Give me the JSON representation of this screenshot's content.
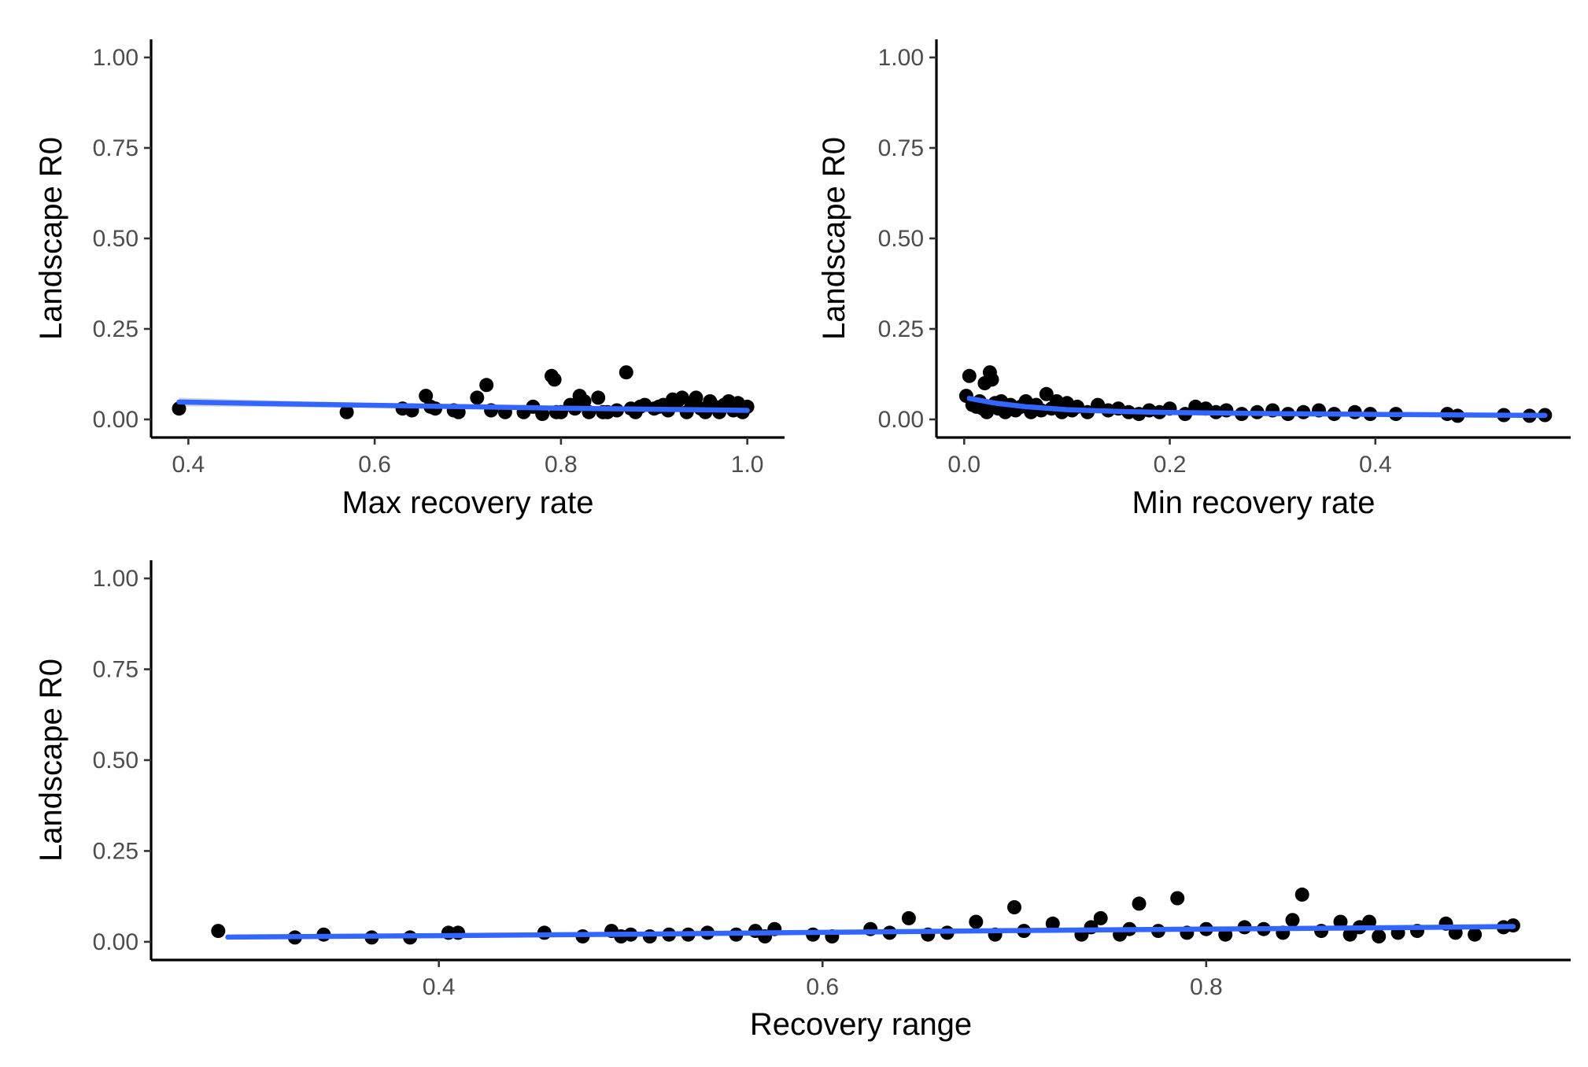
{
  "chart_data": [
    {
      "type": "scatter",
      "panel": "max-recovery",
      "xlabel": "Max recovery rate",
      "ylabel": "Landscape R0",
      "xlim": [
        0.36,
        1.04
      ],
      "ylim": [
        -0.05,
        1.05
      ],
      "xticks": [
        0.4,
        0.6,
        0.8,
        1.0
      ],
      "xtick_labels": [
        "0.4",
        "0.6",
        "0.8",
        "1.0"
      ],
      "yticks": [
        0.0,
        0.25,
        0.5,
        0.75,
        1.0
      ],
      "ytick_labels": [
        "0.00",
        "0.25",
        "0.50",
        "0.75",
        "1.00"
      ],
      "grid": false,
      "points": [
        [
          0.39,
          0.03
        ],
        [
          0.57,
          0.02
        ],
        [
          0.63,
          0.03
        ],
        [
          0.64,
          0.025
        ],
        [
          0.655,
          0.065
        ],
        [
          0.66,
          0.035
        ],
        [
          0.665,
          0.03
        ],
        [
          0.685,
          0.025
        ],
        [
          0.69,
          0.02
        ],
        [
          0.71,
          0.06
        ],
        [
          0.72,
          0.095
        ],
        [
          0.725,
          0.025
        ],
        [
          0.74,
          0.02
        ],
        [
          0.76,
          0.02
        ],
        [
          0.77,
          0.035
        ],
        [
          0.78,
          0.015
        ],
        [
          0.79,
          0.12
        ],
        [
          0.793,
          0.11
        ],
        [
          0.795,
          0.02
        ],
        [
          0.8,
          0.02
        ],
        [
          0.81,
          0.04
        ],
        [
          0.815,
          0.03
        ],
        [
          0.82,
          0.065
        ],
        [
          0.825,
          0.05
        ],
        [
          0.83,
          0.02
        ],
        [
          0.84,
          0.06
        ],
        [
          0.845,
          0.02
        ],
        [
          0.85,
          0.02
        ],
        [
          0.86,
          0.025
        ],
        [
          0.87,
          0.13
        ],
        [
          0.875,
          0.03
        ],
        [
          0.88,
          0.02
        ],
        [
          0.885,
          0.035
        ],
        [
          0.89,
          0.04
        ],
        [
          0.9,
          0.03
        ],
        [
          0.905,
          0.035
        ],
        [
          0.91,
          0.04
        ],
        [
          0.915,
          0.025
        ],
        [
          0.92,
          0.055
        ],
        [
          0.925,
          0.05
        ],
        [
          0.93,
          0.06
        ],
        [
          0.935,
          0.02
        ],
        [
          0.94,
          0.045
        ],
        [
          0.945,
          0.06
        ],
        [
          0.95,
          0.03
        ],
        [
          0.955,
          0.02
        ],
        [
          0.96,
          0.05
        ],
        [
          0.965,
          0.035
        ],
        [
          0.97,
          0.02
        ],
        [
          0.975,
          0.04
        ],
        [
          0.98,
          0.05
        ],
        [
          0.985,
          0.025
        ],
        [
          0.99,
          0.045
        ],
        [
          0.995,
          0.02
        ],
        [
          1.0,
          0.035
        ]
      ],
      "fit": [
        [
          0.39,
          0.048
        ],
        [
          0.5,
          0.043
        ],
        [
          0.6,
          0.039
        ],
        [
          0.7,
          0.035
        ],
        [
          0.8,
          0.031
        ],
        [
          0.9,
          0.028
        ],
        [
          1.0,
          0.025
        ]
      ],
      "band_halfwidth": [
        [
          0.39,
          0.012
        ],
        [
          0.6,
          0.006
        ],
        [
          0.8,
          0.004
        ],
        [
          1.0,
          0.005
        ]
      ]
    },
    {
      "type": "scatter",
      "panel": "min-recovery",
      "xlabel": "Min recovery rate",
      "ylabel": "Landscape R0",
      "xlim": [
        -0.027,
        0.59
      ],
      "ylim": [
        -0.05,
        1.05
      ],
      "xticks": [
        0.0,
        0.2,
        0.4
      ],
      "xtick_labels": [
        "0.0",
        "0.2",
        "0.4"
      ],
      "yticks": [
        0.0,
        0.25,
        0.5,
        0.75,
        1.0
      ],
      "ytick_labels": [
        "0.00",
        "0.25",
        "0.50",
        "0.75",
        "1.00"
      ],
      "grid": false,
      "points": [
        [
          0.002,
          0.065
        ],
        [
          0.005,
          0.12
        ],
        [
          0.008,
          0.04
        ],
        [
          0.012,
          0.035
        ],
        [
          0.015,
          0.05
        ],
        [
          0.018,
          0.03
        ],
        [
          0.02,
          0.1
        ],
        [
          0.022,
          0.02
        ],
        [
          0.025,
          0.13
        ],
        [
          0.027,
          0.11
        ],
        [
          0.03,
          0.045
        ],
        [
          0.033,
          0.03
        ],
        [
          0.036,
          0.05
        ],
        [
          0.04,
          0.02
        ],
        [
          0.045,
          0.04
        ],
        [
          0.05,
          0.025
        ],
        [
          0.055,
          0.035
        ],
        [
          0.06,
          0.05
        ],
        [
          0.065,
          0.02
        ],
        [
          0.07,
          0.04
        ],
        [
          0.075,
          0.025
        ],
        [
          0.08,
          0.07
        ],
        [
          0.085,
          0.03
        ],
        [
          0.09,
          0.05
        ],
        [
          0.095,
          0.02
        ],
        [
          0.1,
          0.045
        ],
        [
          0.105,
          0.025
        ],
        [
          0.11,
          0.035
        ],
        [
          0.12,
          0.02
        ],
        [
          0.13,
          0.04
        ],
        [
          0.14,
          0.025
        ],
        [
          0.15,
          0.03
        ],
        [
          0.16,
          0.02
        ],
        [
          0.17,
          0.015
        ],
        [
          0.18,
          0.025
        ],
        [
          0.19,
          0.02
        ],
        [
          0.2,
          0.03
        ],
        [
          0.215,
          0.015
        ],
        [
          0.225,
          0.035
        ],
        [
          0.235,
          0.03
        ],
        [
          0.245,
          0.02
        ],
        [
          0.255,
          0.025
        ],
        [
          0.27,
          0.015
        ],
        [
          0.285,
          0.02
        ],
        [
          0.3,
          0.025
        ],
        [
          0.315,
          0.015
        ],
        [
          0.33,
          0.02
        ],
        [
          0.345,
          0.025
        ],
        [
          0.36,
          0.015
        ],
        [
          0.38,
          0.02
        ],
        [
          0.395,
          0.015
        ],
        [
          0.42,
          0.015
        ],
        [
          0.47,
          0.015
        ],
        [
          0.48,
          0.01
        ],
        [
          0.525,
          0.012
        ],
        [
          0.55,
          0.01
        ],
        [
          0.565,
          0.012
        ]
      ],
      "fit": [
        [
          0.005,
          0.058
        ],
        [
          0.03,
          0.045
        ],
        [
          0.06,
          0.035
        ],
        [
          0.1,
          0.027
        ],
        [
          0.15,
          0.022
        ],
        [
          0.2,
          0.019
        ],
        [
          0.3,
          0.016
        ],
        [
          0.4,
          0.014
        ],
        [
          0.5,
          0.012
        ],
        [
          0.565,
          0.011
        ]
      ],
      "band_halfwidth": []
    },
    {
      "type": "scatter",
      "panel": "recovery-range",
      "xlabel": "Recovery range",
      "ylabel": "Landscape R0",
      "xlim": [
        0.25,
        0.99
      ],
      "ylim": [
        -0.05,
        1.05
      ],
      "xticks": [
        0.4,
        0.6,
        0.8
      ],
      "xtick_labels": [
        "0.4",
        "0.6",
        "0.8"
      ],
      "yticks": [
        0.0,
        0.25,
        0.5,
        0.75,
        1.0
      ],
      "ytick_labels": [
        "0.00",
        "0.25",
        "0.50",
        "0.75",
        "1.00"
      ],
      "grid": false,
      "points": [
        [
          0.285,
          0.03
        ],
        [
          0.325,
          0.012
        ],
        [
          0.34,
          0.02
        ],
        [
          0.365,
          0.012
        ],
        [
          0.385,
          0.012
        ],
        [
          0.405,
          0.025
        ],
        [
          0.41,
          0.025
        ],
        [
          0.455,
          0.025
        ],
        [
          0.475,
          0.015
        ],
        [
          0.49,
          0.03
        ],
        [
          0.495,
          0.015
        ],
        [
          0.5,
          0.02
        ],
        [
          0.51,
          0.015
        ],
        [
          0.52,
          0.02
        ],
        [
          0.53,
          0.02
        ],
        [
          0.54,
          0.025
        ],
        [
          0.555,
          0.02
        ],
        [
          0.565,
          0.03
        ],
        [
          0.57,
          0.015
        ],
        [
          0.575,
          0.035
        ],
        [
          0.595,
          0.02
        ],
        [
          0.605,
          0.015
        ],
        [
          0.625,
          0.035
        ],
        [
          0.635,
          0.025
        ],
        [
          0.645,
          0.065
        ],
        [
          0.655,
          0.02
        ],
        [
          0.665,
          0.025
        ],
        [
          0.68,
          0.055
        ],
        [
          0.69,
          0.02
        ],
        [
          0.7,
          0.095
        ],
        [
          0.705,
          0.03
        ],
        [
          0.72,
          0.05
        ],
        [
          0.735,
          0.02
        ],
        [
          0.74,
          0.04
        ],
        [
          0.745,
          0.065
        ],
        [
          0.755,
          0.02
        ],
        [
          0.76,
          0.035
        ],
        [
          0.765,
          0.105
        ],
        [
          0.775,
          0.03
        ],
        [
          0.785,
          0.12
        ],
        [
          0.79,
          0.025
        ],
        [
          0.8,
          0.035
        ],
        [
          0.81,
          0.02
        ],
        [
          0.82,
          0.04
        ],
        [
          0.83,
          0.035
        ],
        [
          0.84,
          0.025
        ],
        [
          0.845,
          0.06
        ],
        [
          0.85,
          0.13
        ],
        [
          0.86,
          0.03
        ],
        [
          0.87,
          0.055
        ],
        [
          0.875,
          0.02
        ],
        [
          0.88,
          0.04
        ],
        [
          0.885,
          0.055
        ],
        [
          0.89,
          0.015
        ],
        [
          0.9,
          0.025
        ],
        [
          0.91,
          0.03
        ],
        [
          0.925,
          0.05
        ],
        [
          0.93,
          0.025
        ],
        [
          0.94,
          0.02
        ],
        [
          0.955,
          0.04
        ],
        [
          0.96,
          0.045
        ]
      ],
      "fit": [
        [
          0.29,
          0.013
        ],
        [
          0.4,
          0.017
        ],
        [
          0.5,
          0.021
        ],
        [
          0.6,
          0.026
        ],
        [
          0.7,
          0.031
        ],
        [
          0.8,
          0.035
        ],
        [
          0.9,
          0.039
        ],
        [
          0.96,
          0.042
        ]
      ],
      "band_halfwidth": []
    }
  ]
}
